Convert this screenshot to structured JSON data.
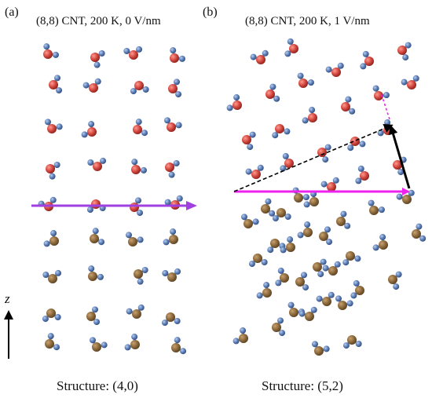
{
  "panels": [
    {
      "id": "a",
      "label": "(a)",
      "title": "(8,8) CNT, 200 K, 0 V/nm",
      "caption": "Structure: (4,0)"
    },
    {
      "id": "b",
      "label": "(b)",
      "title": "(8,8) CNT, 200 K, 1 V/nm",
      "caption": "Structure: (5,2)"
    }
  ],
  "axis": {
    "label": "z"
  },
  "colors": {
    "oxygen_upper": "#d2473f",
    "oxygen_lower": "#8c6a3c",
    "hydrogen": "#5b7db5",
    "bond": "#7f9fcc",
    "arrow_magenta": "#ee22ee",
    "arrow_purple": "#a040e0",
    "arrow_black": "#000000"
  },
  "icons": [
    "water-molecule-icon",
    "arrow-icon"
  ]
}
